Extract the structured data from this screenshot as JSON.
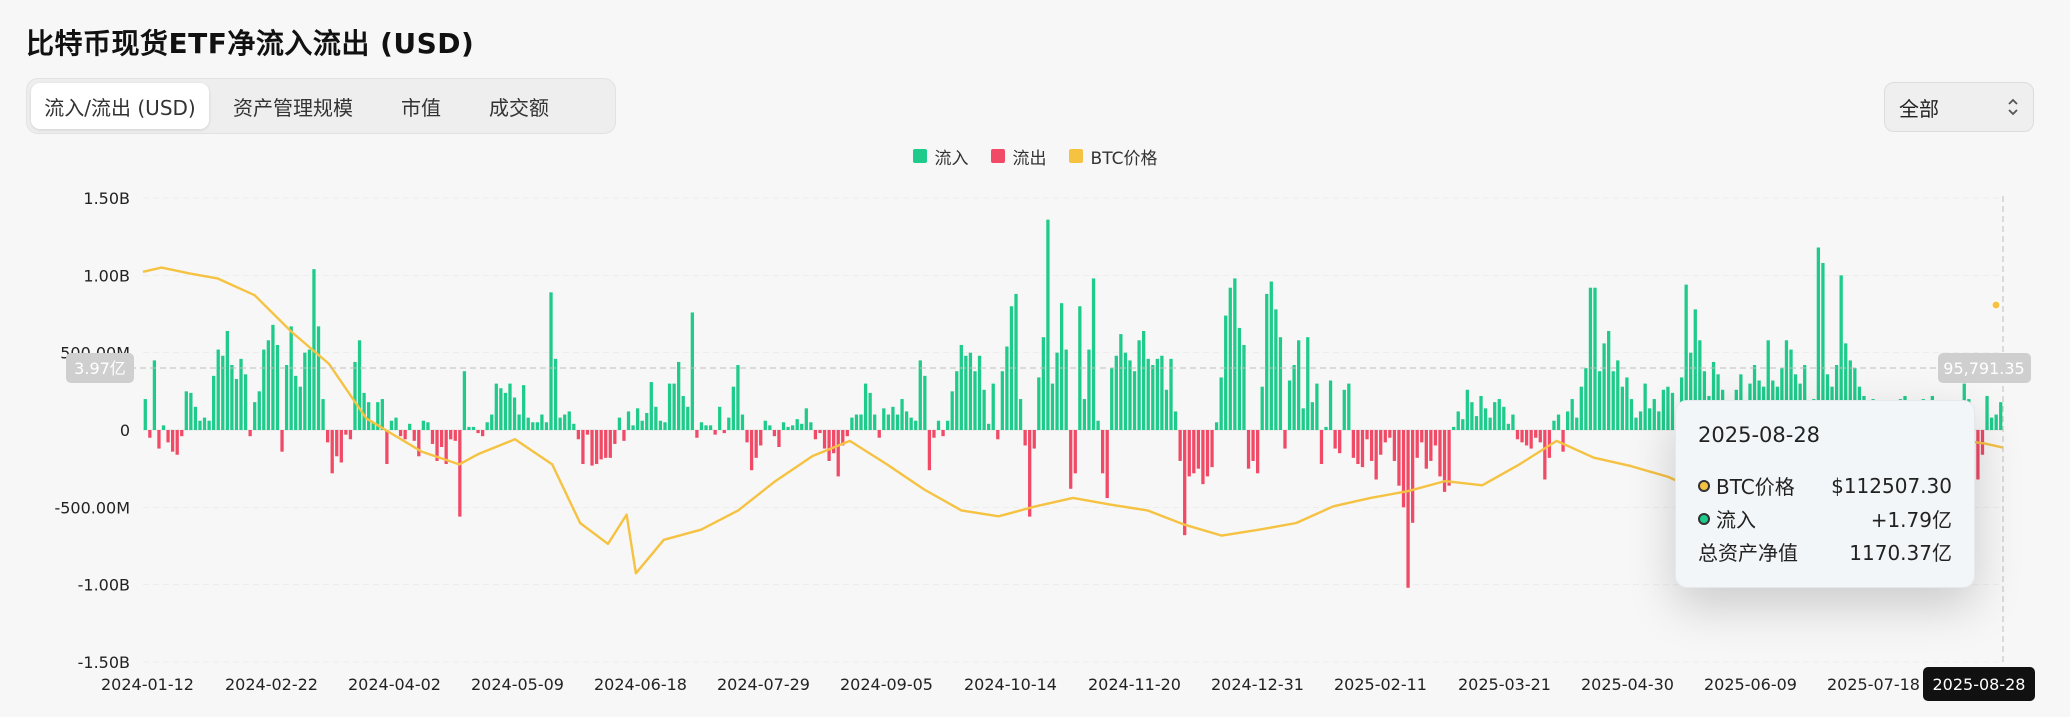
{
  "title": "比特币现货ETF净流入流出 (USD)",
  "tabs": [
    {
      "label": "流入/流出 (USD)",
      "active": true
    },
    {
      "label": "资产管理规模",
      "active": false
    },
    {
      "label": "市值",
      "active": false
    },
    {
      "label": "成交额",
      "active": false
    }
  ],
  "range_select": {
    "value": "全部"
  },
  "legend": [
    {
      "label": "流入",
      "color": "#1ecb8a"
    },
    {
      "label": "流出",
      "color": "#f04a67"
    },
    {
      "label": "BTC价格",
      "color": "#f5c242"
    }
  ],
  "crosshair": {
    "left_label": "3.97亿",
    "right_label": "95,791.35",
    "date_label": "2025-08-28"
  },
  "tooltip": {
    "date": "2025-08-28",
    "rows": [
      {
        "label": "BTC价格",
        "value": "$112507.30",
        "dot": "#f5c242"
      },
      {
        "label": "流入",
        "value": "+1.79亿",
        "dot": "#1ecb8a"
      },
      {
        "label": "总资产净值",
        "value": "1170.37亿",
        "dot": ""
      }
    ]
  },
  "chart_data": {
    "type": "bar",
    "y_ticks": [
      "1.50B",
      "1.00B",
      "500.00M",
      "0",
      "-500.00M",
      "-1.00B",
      "-1.50B"
    ],
    "ylim": [
      -1.5,
      1.5
    ],
    "y_unit": "B USD",
    "x_tick_labels": [
      "2024-01-12",
      "2024-02-22",
      "2024-04-02",
      "2024-05-09",
      "2024-06-18",
      "2024-07-29",
      "2024-09-05",
      "2024-10-14",
      "2024-11-20",
      "2024-12-31",
      "2025-02-11",
      "2025-03-21",
      "2025-04-30",
      "2025-06-09",
      "2025-07-18"
    ],
    "flows": [
      0.2,
      -0.05,
      0.45,
      -0.12,
      0.03,
      -0.08,
      -0.14,
      -0.16,
      -0.04,
      0.25,
      0.24,
      0.15,
      0.06,
      0.08,
      0.06,
      0.35,
      0.52,
      0.48,
      0.64,
      0.42,
      0.33,
      0.46,
      0.36,
      -0.04,
      0.18,
      0.25,
      0.52,
      0.58,
      0.68,
      0.55,
      -0.14,
      0.42,
      0.67,
      0.35,
      0.28,
      0.5,
      0.52,
      1.04,
      0.67,
      0.2,
      -0.08,
      -0.28,
      -0.17,
      -0.21,
      -0.03,
      -0.06,
      0.44,
      0.58,
      0.24,
      0.18,
      0.05,
      0.18,
      0.2,
      -0.22,
      0.06,
      0.08,
      -0.04,
      -0.06,
      0.04,
      -0.07,
      -0.17,
      0.06,
      0.05,
      -0.09,
      -0.2,
      -0.11,
      -0.22,
      -0.06,
      -0.07,
      -0.56,
      0.38,
      0.02,
      0.02,
      -0.02,
      -0.04,
      0.05,
      0.1,
      0.3,
      0.27,
      0.24,
      0.3,
      0.21,
      0.1,
      0.29,
      0.08,
      0.05,
      0.05,
      0.1,
      0.05,
      0.89,
      0.46,
      0.08,
      0.1,
      0.12,
      0.04,
      -0.06,
      -0.22,
      -0.03,
      -0.23,
      -0.22,
      -0.19,
      -0.18,
      -0.18,
      -0.09,
      0.08,
      -0.07,
      0.12,
      0.03,
      0.14,
      0.06,
      0.11,
      0.31,
      0.15,
      0.06,
      0.05,
      0.3,
      0.3,
      0.44,
      0.22,
      0.15,
      0.76,
      -0.05,
      0.05,
      0.03,
      0.03,
      -0.03,
      0.15,
      -0.02,
      0.08,
      0.28,
      0.42,
      0.1,
      -0.08,
      -0.26,
      -0.18,
      -0.1,
      0.06,
      0.03,
      -0.04,
      -0.11,
      0.05,
      0.02,
      0.03,
      0.07,
      0.04,
      0.14,
      0.05,
      -0.06,
      -0.02,
      -0.12,
      -0.2,
      -0.15,
      -0.3,
      -0.1,
      -0.04,
      0.08,
      0.1,
      0.1,
      0.3,
      0.24,
      0.1,
      -0.05,
      0.14,
      0.1,
      0.15,
      0.1,
      0.2,
      0.12,
      0.08,
      0.06,
      0.45,
      0.35,
      -0.26,
      -0.05,
      0.06,
      -0.04,
      0.06,
      0.25,
      0.38,
      0.55,
      0.48,
      0.5,
      0.38,
      0.48,
      0.26,
      0.04,
      0.3,
      -0.06,
      0.38,
      0.54,
      0.8,
      0.88,
      0.2,
      -0.1,
      -0.56,
      -0.12,
      0.34,
      0.6,
      1.36,
      0.3,
      0.5,
      0.82,
      0.52,
      -0.38,
      -0.28,
      0.8,
      0.2,
      0.52,
      0.98,
      0.06,
      -0.28,
      -0.44,
      0.4,
      0.48,
      0.62,
      0.5,
      0.45,
      0.38,
      0.58,
      0.64,
      0.46,
      0.42,
      0.46,
      0.48,
      0.26,
      0.46,
      0.12,
      -0.2,
      -0.68,
      -0.3,
      -0.28,
      -0.25,
      -0.35,
      -0.3,
      -0.24,
      0.05,
      0.34,
      0.74,
      0.92,
      0.98,
      0.66,
      0.55,
      -0.25,
      -0.2,
      -0.28,
      0.28,
      0.88,
      0.96,
      0.78,
      0.6,
      -0.12,
      0.32,
      0.42,
      0.58,
      0.14,
      0.6,
      0.18,
      0.3,
      -0.22,
      0.02,
      0.32,
      -0.12,
      -0.15,
      0.26,
      0.3,
      -0.18,
      -0.22,
      -0.24,
      -0.06,
      -0.2,
      -0.32,
      -0.16,
      -0.08,
      -0.05,
      -0.2,
      -0.36,
      -0.5,
      -1.02,
      -0.6,
      -0.18,
      -0.08,
      -0.25,
      -0.2,
      -0.1,
      -0.3,
      -0.4,
      -0.36,
      0.02,
      0.12,
      0.07,
      0.26,
      0.18,
      0.09,
      0.22,
      0.14,
      0.08,
      0.18,
      0.2,
      0.15,
      0.04,
      0.1,
      -0.06,
      -0.08,
      -0.1,
      -0.12,
      -0.05,
      -0.08,
      -0.32,
      -0.18,
      0.06,
      0.1,
      -0.14,
      0.12,
      0.2,
      0.08,
      0.28,
      0.4,
      0.92,
      0.92,
      0.38,
      0.56,
      0.64,
      0.38,
      0.45,
      0.28,
      0.34,
      0.2,
      0.08,
      0.12,
      0.3,
      0.14,
      0.2,
      0.12,
      0.26,
      0.28,
      0.24,
      0.12,
      0.34,
      0.94,
      0.5,
      0.78,
      0.58,
      0.38,
      0.22,
      0.44,
      0.36,
      0.26,
      0.14,
      0.18,
      0.26,
      0.36,
      0.16,
      0.3,
      0.42,
      0.32,
      0.28,
      0.58,
      0.32,
      0.28,
      0.4,
      0.58,
      0.52,
      0.36,
      0.3,
      0.42,
      0.16,
      0.2,
      1.18,
      1.08,
      0.36,
      0.28,
      0.42,
      1.0,
      0.56,
      0.45,
      0.4,
      0.28,
      0.22,
      0.18,
      0.2,
      0.12,
      0.06,
      -0.04,
      0.1,
      0.16,
      0.2,
      0.22,
      0.04,
      0.1,
      0.12,
      0.2,
      0.08,
      0.22,
      0.16,
      0.1,
      -0.12,
      0.06,
      0.04,
      0.18,
      0.3,
      0.2,
      0.1,
      -0.32,
      -0.16,
      0.22,
      0.08,
      0.1,
      0.18
    ],
    "btc_price_path": [
      [
        0,
        380
      ],
      [
        0.01,
        385
      ],
      [
        0.025,
        378
      ],
      [
        0.04,
        372
      ],
      [
        0.06,
        352
      ],
      [
        0.08,
        308
      ],
      [
        0.1,
        270
      ],
      [
        0.12,
        205
      ],
      [
        0.135,
        185
      ],
      [
        0.15,
        165
      ],
      [
        0.17,
        150
      ],
      [
        0.18,
        162
      ],
      [
        0.2,
        180
      ],
      [
        0.22,
        150
      ],
      [
        0.235,
        80
      ],
      [
        0.25,
        55
      ],
      [
        0.26,
        90
      ],
      [
        0.265,
        20
      ],
      [
        0.28,
        60
      ],
      [
        0.3,
        72
      ],
      [
        0.32,
        95
      ],
      [
        0.34,
        130
      ],
      [
        0.36,
        160
      ],
      [
        0.38,
        178
      ],
      [
        0.4,
        150
      ],
      [
        0.42,
        120
      ],
      [
        0.44,
        95
      ],
      [
        0.46,
        88
      ],
      [
        0.48,
        100
      ],
      [
        0.5,
        110
      ],
      [
        0.52,
        102
      ],
      [
        0.54,
        95
      ],
      [
        0.56,
        78
      ],
      [
        0.58,
        65
      ],
      [
        0.6,
        72
      ],
      [
        0.62,
        80
      ],
      [
        0.64,
        100
      ],
      [
        0.66,
        110
      ],
      [
        0.68,
        118
      ],
      [
        0.7,
        130
      ],
      [
        0.72,
        125
      ],
      [
        0.74,
        150
      ],
      [
        0.76,
        178
      ],
      [
        0.78,
        158
      ],
      [
        0.8,
        148
      ],
      [
        0.82,
        135
      ],
      [
        0.835,
        120
      ],
      [
        0.84,
        145
      ],
      [
        0.85,
        180
      ],
      [
        0.87,
        170
      ],
      [
        0.88,
        172
      ],
      [
        0.895,
        160
      ],
      [
        0.9,
        150
      ],
      [
        0.905,
        165
      ],
      [
        0.92,
        185
      ],
      [
        0.94,
        178
      ],
      [
        0.96,
        180
      ],
      [
        0.97,
        195
      ],
      [
        0.975,
        160
      ],
      [
        0.98,
        178
      ],
      [
        0.99,
        175
      ],
      [
        1,
        170
      ]
    ]
  }
}
